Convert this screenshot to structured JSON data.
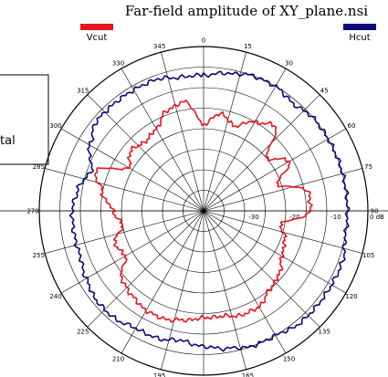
{
  "chart_data": {
    "type": "polar-line",
    "title": "Far-field amplitude of XY_plane.nsi",
    "legend": {
      "placement": "top",
      "entries": [
        {
          "name": "Vcut",
          "color": "#e8141e"
        },
        {
          "name": "Hcut",
          "color": "#0a0a78"
        }
      ]
    },
    "angle_labels": [
      "0",
      "15",
      "30",
      "45",
      "60",
      "75",
      "90",
      "105",
      "120",
      "135",
      "150",
      "165",
      "180",
      "195",
      "210",
      "225",
      "240",
      "255",
      "270",
      "285",
      "300",
      "315",
      "330",
      "345"
    ],
    "radial_labels": [
      "-30",
      "-20",
      "-10",
      "0 dB"
    ],
    "radial_range": [
      -40,
      0
    ],
    "grid": true,
    "series": [
      {
        "name": "Vcut",
        "color": "#e8141e",
        "theta": [
          0,
          10,
          20,
          30,
          40,
          50,
          60,
          70,
          80,
          90,
          100,
          110,
          120,
          130,
          140,
          150,
          160,
          170,
          180,
          190,
          200,
          210,
          220,
          230,
          240,
          250,
          260,
          270,
          280,
          290,
          300,
          310,
          320,
          330,
          340,
          350,
          360
        ],
        "r": [
          -19,
          -16,
          -18,
          -15,
          -13,
          -20,
          -16,
          -21,
          -14,
          -14,
          -21,
          -19,
          -18,
          -16,
          -15,
          -13,
          -13,
          -14,
          -14,
          -13,
          -12,
          -12,
          -13,
          -14,
          -18,
          -17,
          -20,
          -18,
          -15,
          -12,
          -19,
          -17,
          -18,
          -17,
          -14,
          -13,
          -19
        ]
      },
      {
        "name": "Hcut",
        "color": "#0a0a78",
        "theta": [
          0,
          10,
          20,
          30,
          40,
          50,
          60,
          70,
          80,
          90,
          100,
          110,
          120,
          130,
          140,
          150,
          160,
          170,
          180,
          190,
          200,
          210,
          220,
          230,
          240,
          250,
          260,
          270,
          280,
          290,
          300,
          310,
          320,
          330,
          340,
          350,
          360
        ],
        "r": [
          -7,
          -6,
          -5,
          -5,
          -6,
          -5,
          -5,
          -5,
          -5,
          -5,
          -5,
          -4,
          -4,
          -4,
          -4,
          -5,
          -5,
          -6,
          -7,
          -8,
          -7,
          -7,
          -6,
          -6,
          -7,
          -8,
          -8,
          -8,
          -9,
          -11,
          -8,
          -6,
          -6,
          -6,
          -6,
          -7,
          -7
        ]
      }
    ]
  },
  "legend_labels": {
    "vcut": "Vcut",
    "hcut": "Hcut"
  },
  "side_box": {
    "text": "tal"
  }
}
